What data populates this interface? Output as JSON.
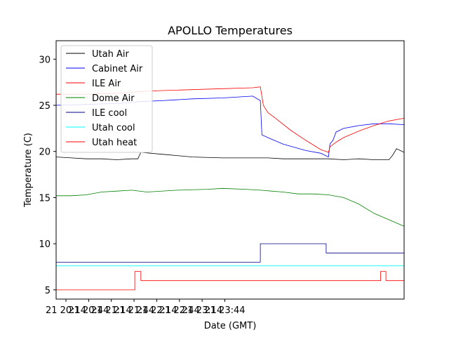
{
  "chart_data": {
    "type": "line",
    "title": "APOLLO Temperatures",
    "xlabel": "Date (GMT)",
    "ylabel": "Temperature (C)",
    "xlim": [
      0,
      460
    ],
    "ylim": [
      4,
      32
    ],
    "x_unit": "minutes after 20:01",
    "x_ticks": [
      {
        "label": "21 20:14",
        "value": 13
      },
      {
        "label": "21 20:44",
        "value": 43
      },
      {
        "label": "21 21:14",
        "value": 73
      },
      {
        "label": "21 21:44",
        "value": 103
      },
      {
        "label": "21 22:14",
        "value": 133
      },
      {
        "label": "21 22:44",
        "value": 163
      },
      {
        "label": "21 23:14",
        "value": 193
      },
      {
        "label": "21 23:44",
        "value": 223
      }
    ],
    "y_ticks": [
      5,
      10,
      15,
      20,
      25,
      30
    ],
    "grid": false,
    "legend_position": "upper-left",
    "series": [
      {
        "name": "Utah Air",
        "color": "#000000",
        "x": [
          0,
          20,
          40,
          60,
          80,
          100,
          108,
          112,
          140,
          180,
          220,
          260,
          280,
          300,
          320,
          340,
          360,
          380,
          400,
          420,
          440,
          445,
          450,
          460
        ],
        "y": [
          19.4,
          19.3,
          19.2,
          19.2,
          19.1,
          19.2,
          19.2,
          19.9,
          19.7,
          19.4,
          19.3,
          19.3,
          19.3,
          19.2,
          19.2,
          19.2,
          19.2,
          19.1,
          19.2,
          19.1,
          19.1,
          19.6,
          20.3,
          19.9
        ]
      },
      {
        "name": "Cabinet Air",
        "color": "#0000ff",
        "x": [
          0,
          40,
          80,
          100,
          110,
          140,
          180,
          220,
          260,
          270,
          272,
          280,
          300,
          330,
          350,
          360,
          362,
          366,
          370,
          380,
          400,
          420,
          440,
          460
        ],
        "y": [
          25.0,
          25.1,
          25.2,
          25.3,
          25.4,
          25.5,
          25.7,
          25.8,
          26.0,
          25.5,
          21.8,
          21.5,
          20.8,
          20.1,
          19.8,
          19.4,
          20.8,
          21.2,
          22.1,
          22.5,
          22.8,
          23.0,
          23.0,
          22.9
        ]
      },
      {
        "name": "ILE Air",
        "color": "#ff0000",
        "x": [
          0,
          40,
          80,
          100,
          110,
          140,
          180,
          220,
          260,
          270,
          274,
          280,
          290,
          310,
          330,
          350,
          360,
          362,
          370,
          380,
          400,
          420,
          440,
          460
        ],
        "y": [
          26.2,
          26.2,
          26.3,
          26.4,
          26.5,
          26.6,
          26.7,
          26.8,
          26.9,
          27.0,
          25.0,
          24.2,
          23.6,
          22.3,
          21.2,
          20.2,
          19.9,
          20.5,
          21.0,
          21.5,
          22.2,
          22.8,
          23.3,
          23.6
        ]
      },
      {
        "name": "Dome Air",
        "color": "#008000",
        "x": [
          0,
          20,
          40,
          60,
          80,
          100,
          120,
          160,
          200,
          220,
          250,
          270,
          300,
          320,
          340,
          360,
          380,
          400,
          420,
          440,
          460
        ],
        "y": [
          15.2,
          15.2,
          15.3,
          15.6,
          15.7,
          15.8,
          15.6,
          15.8,
          15.9,
          16.0,
          15.9,
          15.8,
          15.6,
          15.4,
          15.4,
          15.3,
          15.0,
          14.3,
          13.3,
          12.6,
          11.9
        ]
      },
      {
        "name": "ILE cool",
        "color": "#00008b",
        "x": [
          0,
          270,
          270,
          357,
          357,
          460
        ],
        "y": [
          8,
          8,
          10,
          10,
          9,
          9
        ]
      },
      {
        "name": "Utah cool",
        "color": "#00ffff",
        "x": [
          0,
          460
        ],
        "y": [
          7.6,
          7.6
        ]
      },
      {
        "name": "Utah heat",
        "color": "#ff0000",
        "x": [
          0,
          104,
          104,
          112,
          112,
          429,
          429,
          436,
          436,
          460
        ],
        "y": [
          5,
          5,
          7,
          7,
          6,
          6,
          7,
          7,
          6,
          6
        ]
      }
    ]
  }
}
